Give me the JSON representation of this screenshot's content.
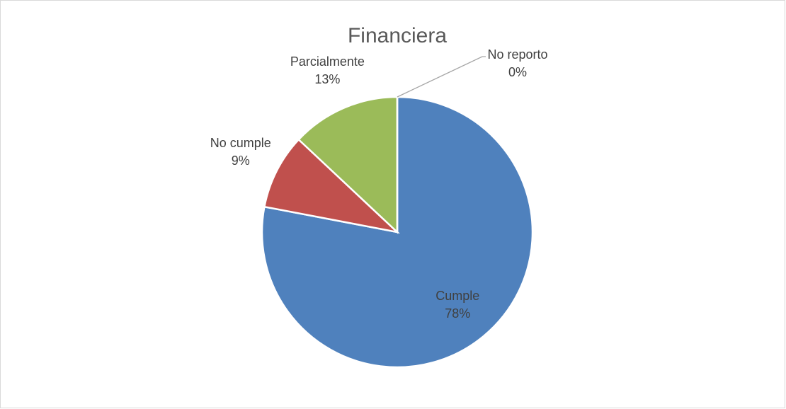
{
  "chart_data": {
    "type": "pie",
    "title": "Financiera",
    "categories": [
      "Cumple",
      "No cumple",
      "Parcialmente",
      "No reporto"
    ],
    "values": [
      78,
      9,
      13,
      0
    ],
    "value_labels": [
      "78%",
      "9%",
      "13%",
      "0%"
    ],
    "colors": [
      "#4f81bd",
      "#c0504d",
      "#9bbb59",
      "#8064a2"
    ]
  }
}
